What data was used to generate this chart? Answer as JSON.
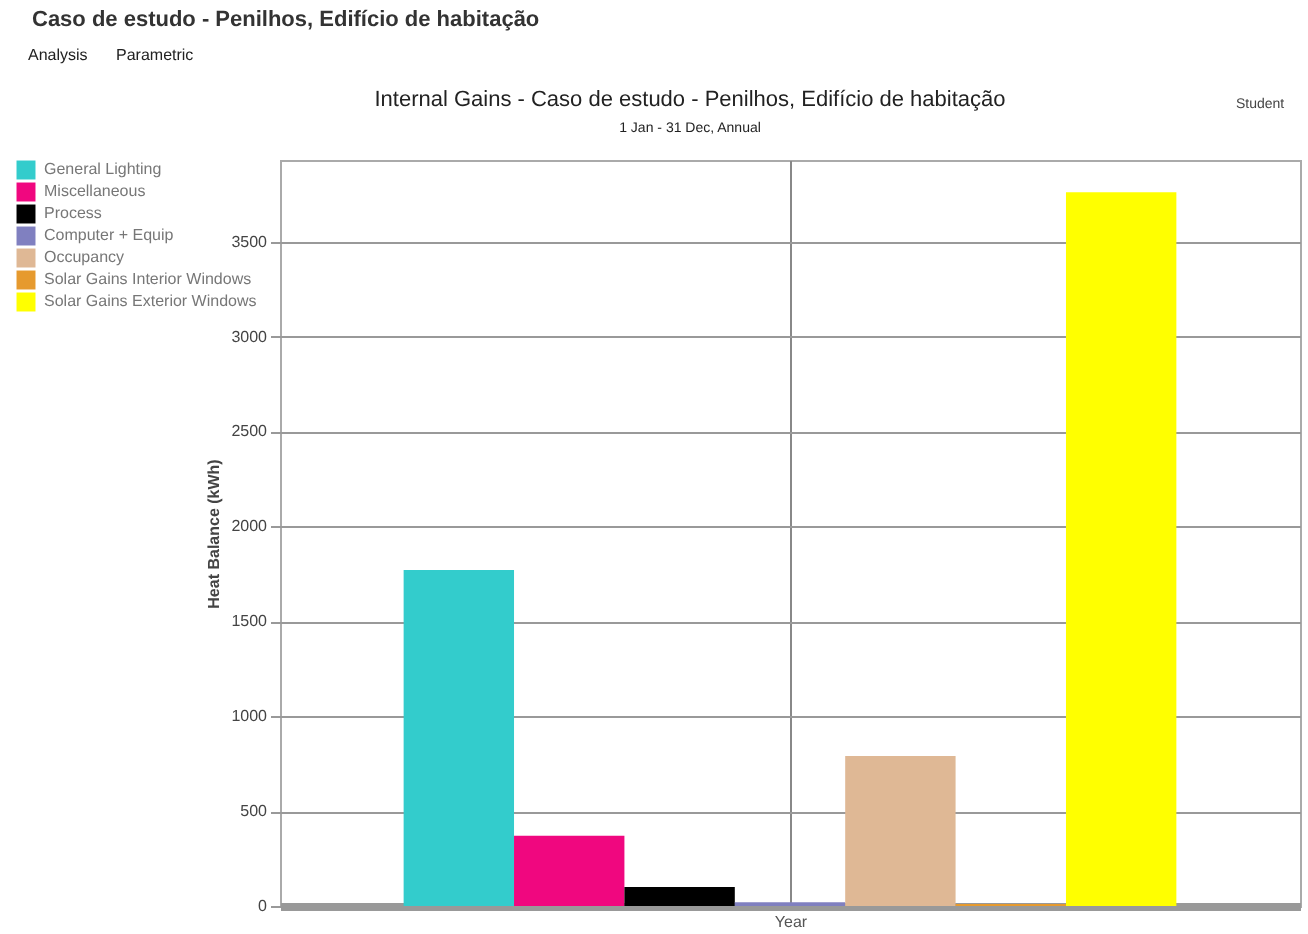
{
  "chart_data": {
    "type": "bar",
    "title": "Internal Gains - Caso de estudo - Penilhos, Edifício de habitação",
    "subtitle": "1 Jan - 31 Dec, Annual",
    "xlabel": "Year",
    "ylabel": "Heat Balance (kWh)",
    "categories": [
      null
    ],
    "series": [
      {
        "name": "General Lighting",
        "color": "#33cccc",
        "values": [
          1770
        ]
      },
      {
        "name": "Miscellaneous",
        "color": "#f0077f",
        "values": [
          370
        ]
      },
      {
        "name": "Process",
        "color": "#000000",
        "values": [
          100
        ]
      },
      {
        "name": "Computer + Equip",
        "color": "#8080c0",
        "values": [
          20
        ]
      },
      {
        "name": "Occupancy",
        "color": "#dfb895",
        "values": [
          790
        ]
      },
      {
        "name": "Solar Gains Interior Windows",
        "color": "#e69a2e",
        "values": [
          10
        ]
      },
      {
        "name": "Solar Gains Exterior Windows",
        "color": "#ffff00",
        "values": [
          3760
        ]
      }
    ],
    "ylim": [
      0,
      3930
    ],
    "yticks": [
      0,
      500,
      1000,
      1500,
      2000,
      2500,
      3000,
      3500
    ],
    "grid": true,
    "legend": "top left",
    "annotations": [
      "Caso de estudo - Penilhos, Edifício de habitação",
      "Analysis",
      "Parametric",
      "Student"
    ]
  }
}
